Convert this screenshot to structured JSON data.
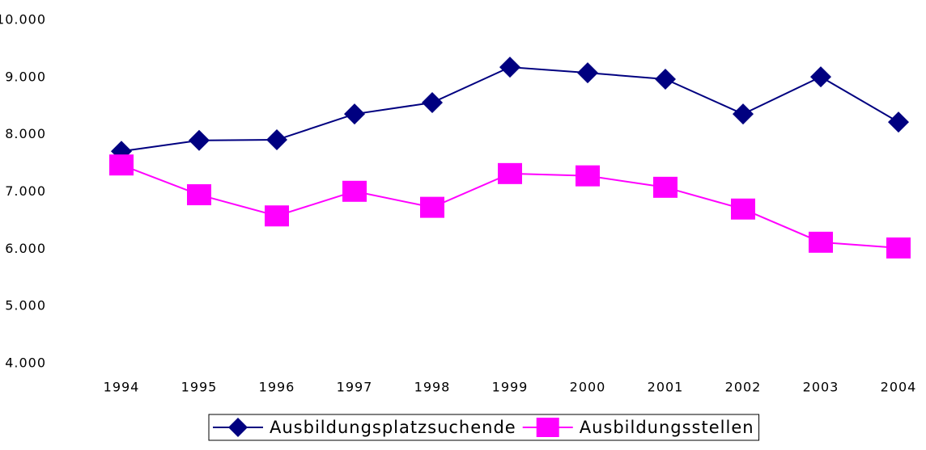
{
  "chart_data": {
    "type": "line",
    "categories": [
      "1994",
      "1995",
      "1996",
      "1997",
      "1998",
      "1999",
      "2000",
      "2001",
      "2002",
      "2003",
      "2004"
    ],
    "series": [
      {
        "name": "Ausbildungsplatzsuchende",
        "color": "#000080",
        "marker": "diamond",
        "values": [
          7710,
          7900,
          7910,
          8360,
          8560,
          9180,
          9080,
          8970,
          8360,
          9010,
          8220
        ]
      },
      {
        "name": "Ausbildungsstellen",
        "color": "#ff00ff",
        "marker": "square",
        "values": [
          7470,
          6950,
          6580,
          7010,
          6730,
          7320,
          7280,
          7080,
          6700,
          6120,
          6020
        ]
      }
    ],
    "ylim": [
      4000,
      10000
    ],
    "yticks": [
      {
        "value": 4000,
        "label": "4.000"
      },
      {
        "value": 5000,
        "label": "5.000"
      },
      {
        "value": 6000,
        "label": "6.000"
      },
      {
        "value": 7000,
        "label": "7.000"
      },
      {
        "value": 8000,
        "label": "8.000"
      },
      {
        "value": 9000,
        "label": "9.000"
      },
      {
        "value": 10000,
        "label": "10.000"
      }
    ],
    "grid": false,
    "legend": "bottom"
  }
}
